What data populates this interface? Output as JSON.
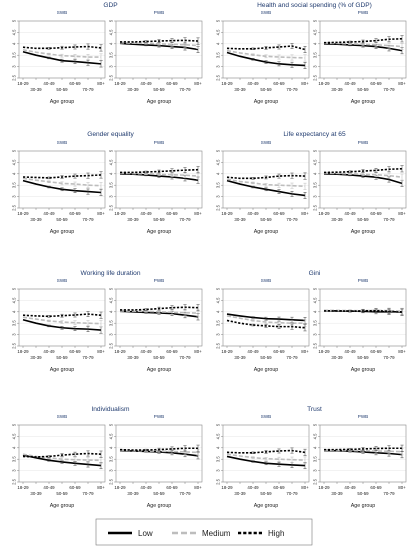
{
  "chart_data": {
    "type": "line",
    "x": [
      "18-29",
      "30-39",
      "40-49",
      "50-59",
      "60-69",
      "70-79",
      "80+"
    ],
    "xlabel": "Age group",
    "ylim": [
      2.5,
      5
    ],
    "yticks": [
      "2.5",
      "3",
      "3.5",
      "4",
      "4.5",
      "5"
    ],
    "grid": true,
    "legend": {
      "placement": "bottom",
      "entries": [
        {
          "name": "Low",
          "style": "solid",
          "color": "#000000"
        },
        {
          "name": "Medium",
          "style": "dashed",
          "color": "#bdbdbd"
        },
        {
          "name": "High",
          "style": "dotted-dashed",
          "color": "#000000"
        }
      ]
    },
    "panels": [
      {
        "title": "GDP",
        "SWB": {
          "Low": [
            3.65,
            3.5,
            3.38,
            3.26,
            3.22,
            3.17,
            3.12
          ],
          "Medium": [
            3.74,
            3.63,
            3.55,
            3.48,
            3.45,
            3.42,
            3.42
          ],
          "High": [
            3.85,
            3.8,
            3.8,
            3.83,
            3.86,
            3.88,
            3.82
          ]
        },
        "PWB": {
          "Low": [
            4.02,
            3.98,
            3.95,
            3.92,
            3.88,
            3.84,
            3.75
          ],
          "Medium": [
            4.05,
            4.03,
            4.02,
            4.0,
            3.98,
            3.96,
            3.92
          ],
          "High": [
            4.08,
            4.08,
            4.1,
            4.12,
            4.14,
            4.15,
            4.12
          ]
        }
      },
      {
        "title": "Health and social spending (% of GDP)",
        "SWB": {
          "Low": [
            3.62,
            3.45,
            3.32,
            3.2,
            3.12,
            3.08,
            3.05
          ],
          "Medium": [
            3.7,
            3.6,
            3.52,
            3.45,
            3.42,
            3.4,
            3.38
          ],
          "High": [
            3.8,
            3.78,
            3.78,
            3.82,
            3.86,
            3.9,
            3.75
          ]
        },
        "PWB": {
          "Low": [
            4.0,
            3.98,
            3.95,
            3.92,
            3.88,
            3.8,
            3.7
          ],
          "Medium": [
            4.03,
            4.02,
            4.0,
            3.98,
            3.96,
            3.92,
            3.88
          ],
          "High": [
            4.05,
            4.06,
            4.08,
            4.1,
            4.14,
            4.2,
            4.22
          ]
        }
      },
      {
        "title": "Gender equality",
        "SWB": {
          "Low": [
            3.7,
            3.55,
            3.42,
            3.32,
            3.26,
            3.22,
            3.18
          ],
          "Medium": [
            3.8,
            3.72,
            3.65,
            3.58,
            3.55,
            3.5,
            3.48
          ],
          "High": [
            3.86,
            3.84,
            3.82,
            3.86,
            3.9,
            3.92,
            3.95
          ]
        },
        "PWB": {
          "Low": [
            4.0,
            3.98,
            3.95,
            3.9,
            3.86,
            3.8,
            3.72
          ],
          "Medium": [
            4.03,
            4.01,
            4.0,
            3.98,
            3.96,
            3.94,
            3.9
          ],
          "High": [
            4.06,
            4.06,
            4.08,
            4.1,
            4.13,
            4.16,
            4.18
          ]
        }
      },
      {
        "title": "Life expectancy at 65",
        "SWB": {
          "Low": [
            3.7,
            3.55,
            3.42,
            3.32,
            3.22,
            3.12,
            3.05
          ],
          "Medium": [
            3.76,
            3.66,
            3.6,
            3.52,
            3.5,
            3.48,
            3.45
          ],
          "High": [
            3.85,
            3.8,
            3.8,
            3.84,
            3.9,
            3.92,
            3.9
          ]
        },
        "PWB": {
          "Low": [
            4.0,
            3.98,
            3.95,
            3.9,
            3.85,
            3.75,
            3.58
          ],
          "Medium": [
            4.03,
            4.02,
            4.0,
            3.98,
            3.96,
            3.92,
            3.85
          ],
          "High": [
            4.06,
            4.07,
            4.09,
            4.12,
            4.15,
            4.2,
            4.22
          ]
        }
      },
      {
        "title": "Working life duration",
        "SWB": {
          "Low": [
            3.65,
            3.5,
            3.38,
            3.3,
            3.26,
            3.24,
            3.2
          ],
          "Medium": [
            3.76,
            3.68,
            3.6,
            3.55,
            3.52,
            3.5,
            3.48
          ],
          "High": [
            3.85,
            3.82,
            3.8,
            3.83,
            3.86,
            3.9,
            3.85
          ]
        },
        "PWB": {
          "Low": [
            4.02,
            4.0,
            3.97,
            3.95,
            3.92,
            3.85,
            3.78
          ],
          "Medium": [
            4.04,
            4.03,
            4.02,
            4.0,
            3.98,
            3.96,
            3.94
          ],
          "High": [
            4.08,
            4.08,
            4.1,
            4.14,
            4.18,
            4.2,
            4.18
          ]
        }
      },
      {
        "title": "Gini",
        "SWB": {
          "Low": [
            3.9,
            3.82,
            3.75,
            3.7,
            3.68,
            3.65,
            3.62
          ],
          "Medium": [
            3.82,
            3.72,
            3.62,
            3.55,
            3.52,
            3.5,
            3.5
          ],
          "High": [
            3.62,
            3.5,
            3.42,
            3.38,
            3.35,
            3.35,
            3.3
          ]
        },
        "PWB": {
          "Low": [
            4.05,
            4.04,
            4.03,
            4.02,
            4.0,
            4.0,
            4.0
          ],
          "Medium": [
            4.06,
            4.06,
            4.05,
            4.05,
            4.06,
            4.05,
            4.02
          ],
          "High": [
            4.04,
            4.04,
            4.03,
            4.04,
            4.05,
            4.02,
            3.98
          ]
        }
      },
      {
        "title": "Individualism",
        "SWB": {
          "Low": [
            3.68,
            3.56,
            3.45,
            3.38,
            3.32,
            3.27,
            3.22
          ],
          "Medium": [
            3.72,
            3.62,
            3.56,
            3.5,
            3.48,
            3.46,
            3.45
          ],
          "High": [
            3.62,
            3.6,
            3.62,
            3.68,
            3.72,
            3.75,
            3.72
          ]
        },
        "PWB": {
          "Low": [
            3.88,
            3.86,
            3.84,
            3.82,
            3.78,
            3.72,
            3.65
          ],
          "Medium": [
            3.9,
            3.88,
            3.86,
            3.85,
            3.84,
            3.82,
            3.8
          ],
          "High": [
            3.92,
            3.9,
            3.9,
            3.92,
            3.95,
            3.98,
            3.98
          ]
        }
      },
      {
        "title": "Trust",
        "SWB": {
          "Low": [
            3.62,
            3.5,
            3.4,
            3.32,
            3.28,
            3.25,
            3.22
          ],
          "Medium": [
            3.72,
            3.64,
            3.57,
            3.52,
            3.5,
            3.48,
            3.46
          ],
          "High": [
            3.8,
            3.78,
            3.78,
            3.82,
            3.86,
            3.88,
            3.8
          ]
        },
        "PWB": {
          "Low": [
            3.88,
            3.87,
            3.85,
            3.82,
            3.78,
            3.75,
            3.7
          ],
          "Medium": [
            3.9,
            3.89,
            3.88,
            3.87,
            3.86,
            3.85,
            3.83
          ],
          "High": [
            3.92,
            3.92,
            3.93,
            3.95,
            3.97,
            3.98,
            3.98
          ]
        }
      }
    ]
  }
}
